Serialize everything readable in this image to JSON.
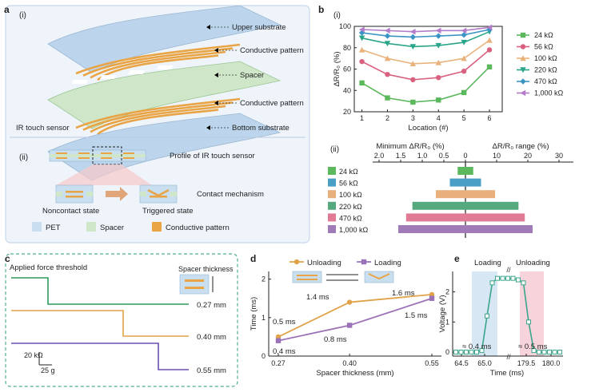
{
  "panel_a": {
    "letter": "a",
    "sub_i": "(i)",
    "sub_ii": "(ii)",
    "labels": [
      "Upper substrate",
      "Conductive pattern",
      "Spacer",
      "Conductive pattern",
      "Bottom substrate"
    ],
    "sensor_label": "IR touch sensor",
    "profile_label": "Profile of IR touch sensor",
    "contact_label": "Contact mechanism",
    "noncontact": "Noncontact state",
    "triggered": "Triggered state",
    "legend": [
      "PET",
      "Spacer",
      "Conductive pattern"
    ],
    "colors": {
      "pet": "#c9dff0",
      "spacer": "#cfe7c8",
      "conductive": "#e8a445"
    }
  },
  "panel_b": {
    "letter": "b",
    "sub_i": "(i)",
    "sub_ii": "(ii)",
    "top_axis_left_label": "Minimum ΔR/R₀ (%)",
    "top_axis_right_label": "ΔR/R₀ range (%)"
  },
  "panel_c": {
    "letter": "c",
    "title": "Applied force threshold",
    "spacer_label": "Spacer thickness",
    "traces": [
      {
        "label": "0.27 mm",
        "color": "#2e9a5a"
      },
      {
        "label": "0.40 mm",
        "color": "#e0a34a"
      },
      {
        "label": "0.55 mm",
        "color": "#6b4fb3"
      }
    ],
    "scale_y": "20 kΩ",
    "scale_x": "25 g"
  },
  "panel_d": {
    "letter": "d"
  },
  "panel_e": {
    "letter": "e",
    "loading": "Loading",
    "unloading": "Unloading",
    "t1": "≈ 0.4 ms",
    "t2": "≈ 0.5 ms"
  },
  "chart_data": [
    {
      "type": "line",
      "id": "b_i",
      "xlabel": "Location (#)",
      "ylabel": "ΔR/R₀ (%)",
      "x": [
        1,
        2,
        3,
        4,
        5,
        6
      ],
      "xlim": [
        0.7,
        6.5
      ],
      "ylim": [
        20,
        100
      ],
      "yticks": [
        20,
        30,
        40,
        50,
        60,
        70,
        80,
        90,
        100
      ],
      "series": [
        {
          "name": "24 kΩ",
          "color": "#5cb85c",
          "marker": "square",
          "values": [
            47,
            33,
            29,
            31,
            38,
            62
          ]
        },
        {
          "name": "56 kΩ",
          "color": "#d9607f",
          "marker": "circle",
          "values": [
            67,
            55,
            50,
            52,
            58,
            78
          ]
        },
        {
          "name": "100 kΩ",
          "color": "#e9b27a",
          "marker": "triangle-up",
          "values": [
            78,
            70,
            65,
            66,
            70,
            87
          ]
        },
        {
          "name": "220 kΩ",
          "color": "#2aa58a",
          "marker": "triangle-down",
          "values": [
            89,
            84,
            81,
            82,
            85,
            95
          ]
        },
        {
          "name": "470 kΩ",
          "color": "#3b94c4",
          "marker": "diamond",
          "values": [
            94,
            91,
            90,
            91,
            92,
            97
          ]
        },
        {
          "name": "1,000 kΩ",
          "color": "#b27cc8",
          "marker": "triangle-left",
          "values": [
            97,
            96,
            95,
            96,
            96,
            99
          ]
        }
      ]
    },
    {
      "type": "bar",
      "id": "b_ii",
      "orientation": "horizontal",
      "categories": [
        "24 kΩ",
        "56 kΩ",
        "100 kΩ",
        "220 kΩ",
        "470 kΩ",
        "1,000 kΩ"
      ],
      "colors": [
        "#5cb85c",
        "#4a9fc7",
        "#e7b07d",
        "#56a97f",
        "#e07a95",
        "#a07bb8"
      ],
      "min_values": [
        0.4,
        0.6,
        1.0,
        1.5,
        1.8,
        1.4
      ],
      "range_values": [
        5,
        10,
        19,
        33,
        36,
        40
      ],
      "left_ticks": [
        2.0,
        1.5,
        1.0,
        0.5,
        0
      ],
      "right_ticks": [
        0,
        10,
        20,
        30
      ]
    },
    {
      "type": "line",
      "id": "d",
      "xlabel": "Spacer thickness (mm)",
      "ylabel": "Time (ms)",
      "x": [
        0.27,
        0.4,
        0.55
      ],
      "xticks": [
        0.27,
        0.4,
        0.55
      ],
      "ylim": [
        0,
        2.2
      ],
      "yticks": [
        0,
        1,
        2
      ],
      "series": [
        {
          "name": "Unloading",
          "color": "#e0a34a",
          "marker": "circle",
          "values": [
            0.5,
            1.4,
            1.6
          ]
        },
        {
          "name": "Loading",
          "color": "#9b72b8",
          "marker": "square",
          "values": [
            0.4,
            0.8,
            1.5
          ]
        }
      ],
      "annotations": [
        "0.5 ms",
        "0.4 ms",
        "1.4 ms",
        "0.8 ms",
        "1.6 ms",
        "1.5 ms"
      ]
    },
    {
      "type": "line",
      "id": "e",
      "xlabel": "Time (ms)",
      "ylabel": "Voltage (V)",
      "xtick_labels": [
        "64.5",
        "65.0",
        "179.5",
        "180.0"
      ],
      "ylim": [
        0,
        2.6
      ],
      "yticks": [
        0,
        1,
        2
      ],
      "series": [
        {
          "name": "",
          "color": "#3aa58a",
          "values": [
            0,
            0,
            0,
            0,
            0,
            0.05,
            1.2,
            2.3,
            2.45,
            2.45,
            2.45,
            2.45,
            2.4,
            2.3,
            1.0,
            0.05,
            0,
            0,
            0,
            0,
            0
          ]
        }
      ]
    }
  ]
}
